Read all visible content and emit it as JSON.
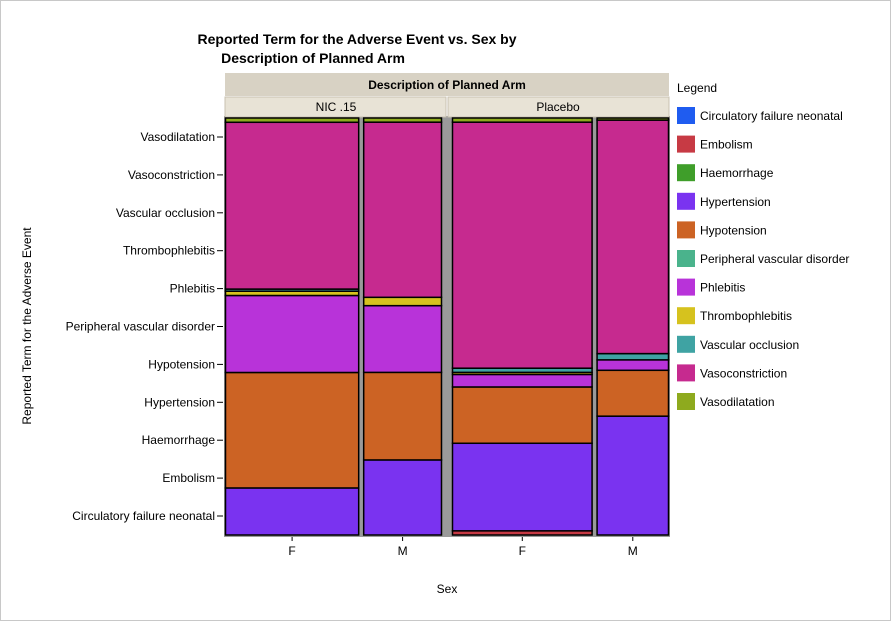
{
  "chart_data": {
    "type": "mosaic",
    "title_line1": "Reported Term for the Adverse Event vs. Sex by",
    "title_line2": "Description of Planned Arm",
    "panel_header": "Description of Planned Arm",
    "xlabel": "Sex",
    "ylabel": "Reported Term for the Adverse Event",
    "y_categories": [
      "Circulatory failure neonatal",
      "Embolism",
      "Haemorrhage",
      "Hypertension",
      "Hypotension",
      "Peripheral vascular disorder",
      "Phlebitis",
      "Thrombophlebitis",
      "Vascular occlusion",
      "Vasoconstriction",
      "Vasodilatation"
    ],
    "legend_title": "Legend",
    "legend_placement": "right",
    "colors": {
      "Circulatory failure neonatal": "#1f5cf0",
      "Embolism": "#c73a44",
      "Haemorrhage": "#3f9e2a",
      "Hypertension": "#7a33f0",
      "Hypotension": "#cc6324",
      "Peripheral vascular disorder": "#4ab38c",
      "Phlebitis": "#b833d9",
      "Thrombophlebitis": "#d6c21e",
      "Vascular occlusion": "#3fa3a3",
      "Vasoconstriction": "#c62a8f",
      "Vasodilatation": "#8eaa1e"
    },
    "arms": [
      {
        "name": "NIC .15",
        "width_share": 0.5,
        "columns": [
          {
            "sex": "F",
            "width_share": 0.63,
            "segments": [
              {
                "term": "Circulatory failure neonatal",
                "value": 0
              },
              {
                "term": "Embolism",
                "value": 0
              },
              {
                "term": "Haemorrhage",
                "value": 0
              },
              {
                "term": "Hypertension",
                "value": 11
              },
              {
                "term": "Hypotension",
                "value": 27
              },
              {
                "term": "Peripheral vascular disorder",
                "value": 0
              },
              {
                "term": "Phlebitis",
                "value": 18
              },
              {
                "term": "Thrombophlebitis",
                "value": 1
              },
              {
                "term": "Vascular occlusion",
                "value": 0.5
              },
              {
                "term": "Vasoconstriction",
                "value": 39
              },
              {
                "term": "Vasodilatation",
                "value": 1
              }
            ]
          },
          {
            "sex": "M",
            "width_share": 0.37,
            "segments": [
              {
                "term": "Circulatory failure neonatal",
                "value": 0
              },
              {
                "term": "Embolism",
                "value": 0
              },
              {
                "term": "Haemorrhage",
                "value": 0
              },
              {
                "term": "Hypertension",
                "value": 18
              },
              {
                "term": "Hypotension",
                "value": 21
              },
              {
                "term": "Peripheral vascular disorder",
                "value": 0
              },
              {
                "term": "Phlebitis",
                "value": 16
              },
              {
                "term": "Thrombophlebitis",
                "value": 2
              },
              {
                "term": "Vascular occlusion",
                "value": 0
              },
              {
                "term": "Vasoconstriction",
                "value": 42
              },
              {
                "term": "Vasodilatation",
                "value": 1
              }
            ]
          }
        ]
      },
      {
        "name": "Placebo",
        "width_share": 0.5,
        "columns": [
          {
            "sex": "F",
            "width_share": 0.66,
            "segments": [
              {
                "term": "Circulatory failure neonatal",
                "value": 0
              },
              {
                "term": "Embolism",
                "value": 1
              },
              {
                "term": "Haemorrhage",
                "value": 0
              },
              {
                "term": "Hypertension",
                "value": 21
              },
              {
                "term": "Hypotension",
                "value": 13.5
              },
              {
                "term": "Peripheral vascular disorder",
                "value": 0
              },
              {
                "term": "Phlebitis",
                "value": 3
              },
              {
                "term": "Thrombophlebitis",
                "value": 0.5
              },
              {
                "term": "Vascular occlusion",
                "value": 1
              },
              {
                "term": "Vasoconstriction",
                "value": 59
              },
              {
                "term": "Vasodilatation",
                "value": 1
              }
            ]
          },
          {
            "sex": "M",
            "width_share": 0.34,
            "segments": [
              {
                "term": "Circulatory failure neonatal",
                "value": 0
              },
              {
                "term": "Embolism",
                "value": 0
              },
              {
                "term": "Haemorrhage",
                "value": 0
              },
              {
                "term": "Hypertension",
                "value": 28.5
              },
              {
                "term": "Hypotension",
                "value": 11
              },
              {
                "term": "Peripheral vascular disorder",
                "value": 0
              },
              {
                "term": "Phlebitis",
                "value": 2.5
              },
              {
                "term": "Thrombophlebitis",
                "value": 0
              },
              {
                "term": "Vascular occlusion",
                "value": 1.5
              },
              {
                "term": "Vasoconstriction",
                "value": 56
              },
              {
                "term": "Vasodilatation",
                "value": 0.5
              }
            ]
          }
        ]
      }
    ]
  }
}
